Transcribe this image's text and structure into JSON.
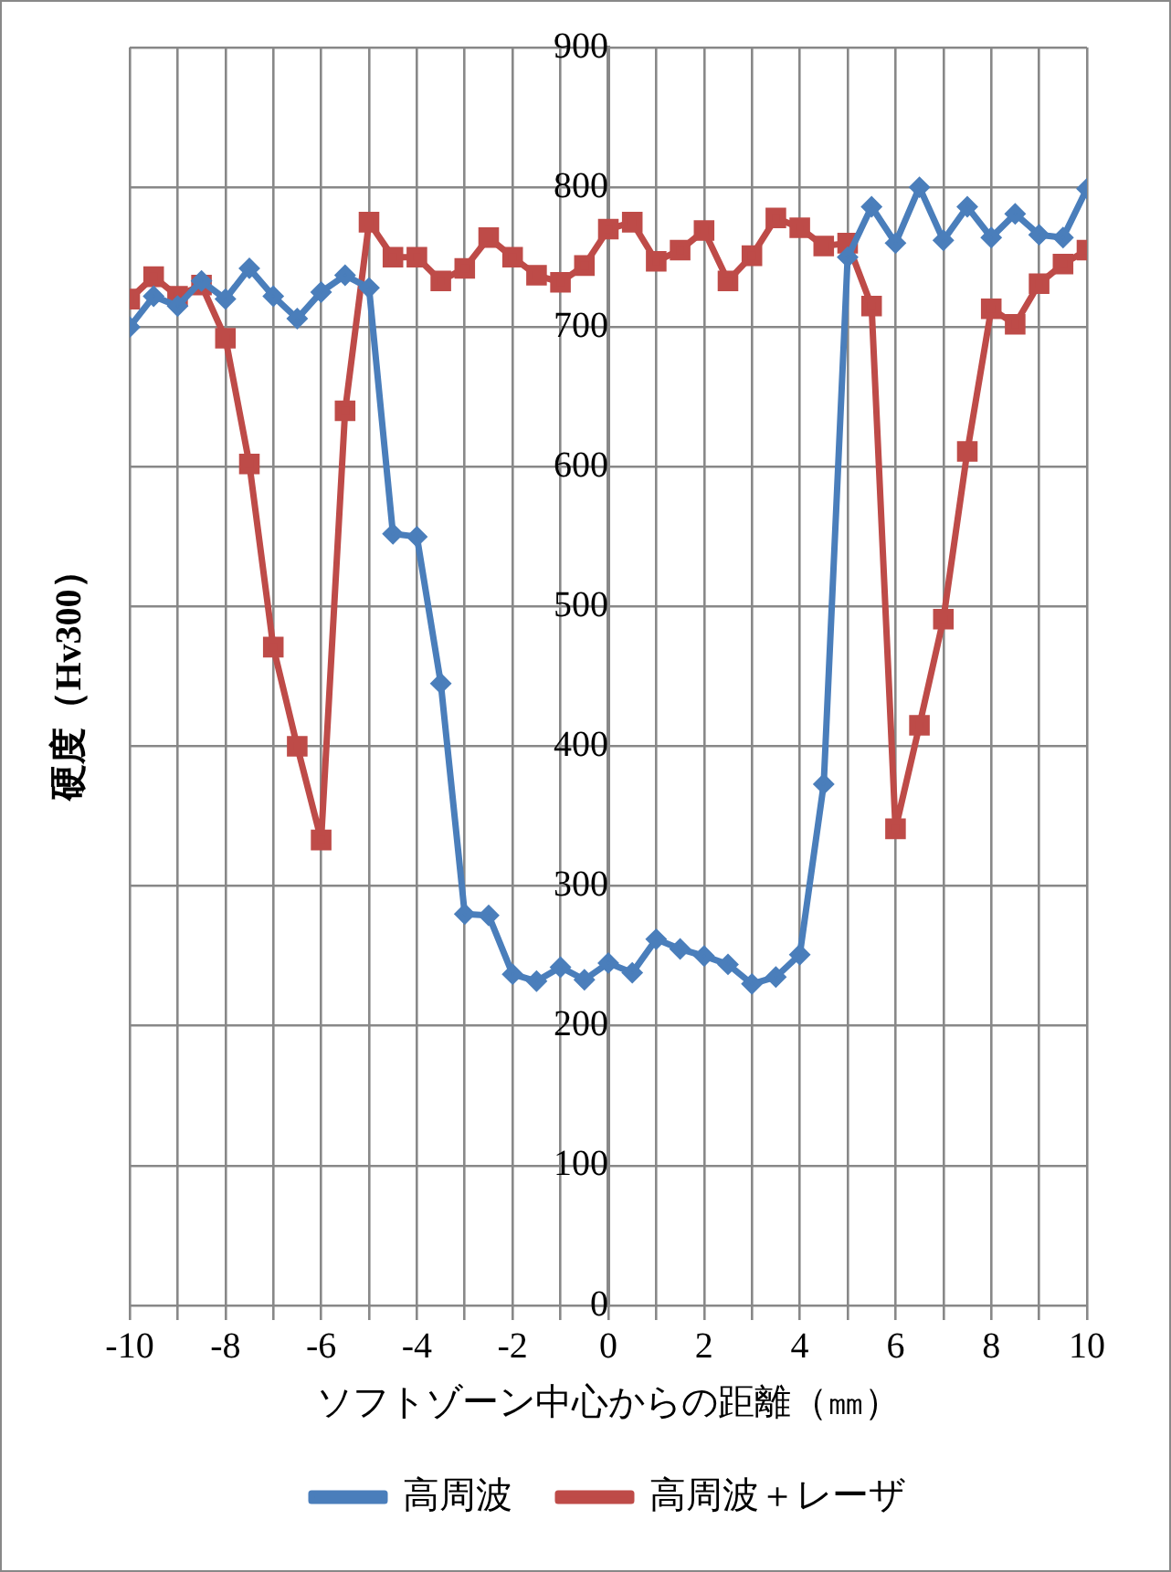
{
  "chart_data": {
    "type": "line",
    "xlabel": "ソフトゾーン中心からの距離（㎜）",
    "ylabel": "硬度（Hv300）",
    "x": [
      -10,
      -9.5,
      -9,
      -8.5,
      -8,
      -7.5,
      -7,
      -6.5,
      -6,
      -5.5,
      -5,
      -4.5,
      -4,
      -3.5,
      -3,
      -2.5,
      -2,
      -1.5,
      -1,
      -0.5,
      0,
      0.5,
      1,
      1.5,
      2,
      2.5,
      3,
      3.5,
      4,
      4.5,
      5,
      5.5,
      6,
      6.5,
      7,
      7.5,
      8,
      8.5,
      9,
      9.5,
      10
    ],
    "series": [
      {
        "name": "高周波",
        "color": "#4a7ebb",
        "marker": "diamond",
        "values": [
          700,
          722,
          715,
          733,
          720,
          742,
          722,
          706,
          725,
          737,
          728,
          552,
          550,
          445,
          280,
          279,
          237,
          232,
          242,
          233,
          245,
          238,
          262,
          255,
          250,
          244,
          230,
          235,
          251,
          373,
          750,
          786,
          760,
          800,
          762,
          786,
          764,
          781,
          766,
          764,
          799
        ]
      },
      {
        "name": "高周波＋レーザ",
        "color": "#be4b48",
        "marker": "square",
        "values": [
          720,
          736,
          722,
          730,
          692,
          602,
          471,
          400,
          333,
          640,
          775,
          750,
          750,
          733,
          742,
          764,
          750,
          737,
          732,
          744,
          770,
          775,
          747,
          755,
          769,
          733,
          751,
          778,
          771,
          758,
          760,
          715,
          341,
          415,
          491,
          611,
          713,
          702,
          731,
          745,
          755
        ]
      }
    ],
    "xlim": [
      -10,
      10
    ],
    "xticks": [
      -10,
      {
        "value": -9,
        "label": null
      },
      -8,
      {
        "value": -7,
        "label": null
      },
      -6,
      {
        "value": -5,
        "label": null
      },
      -4,
      {
        "value": -3,
        "label": null
      },
      -2,
      {
        "value": -1,
        "label": null
      },
      0,
      {
        "value": 1,
        "label": null
      },
      2,
      {
        "value": 3,
        "label": null
      },
      4,
      {
        "value": 5,
        "label": null
      },
      6,
      {
        "value": 7,
        "label": null
      },
      8,
      {
        "value": 9,
        "label": null
      },
      10
    ],
    "ylim": [
      0,
      900
    ],
    "yticks": [
      0,
      100,
      200,
      300,
      400,
      500,
      600,
      700,
      800,
      900
    ],
    "grid": true,
    "legend": "bottom"
  }
}
